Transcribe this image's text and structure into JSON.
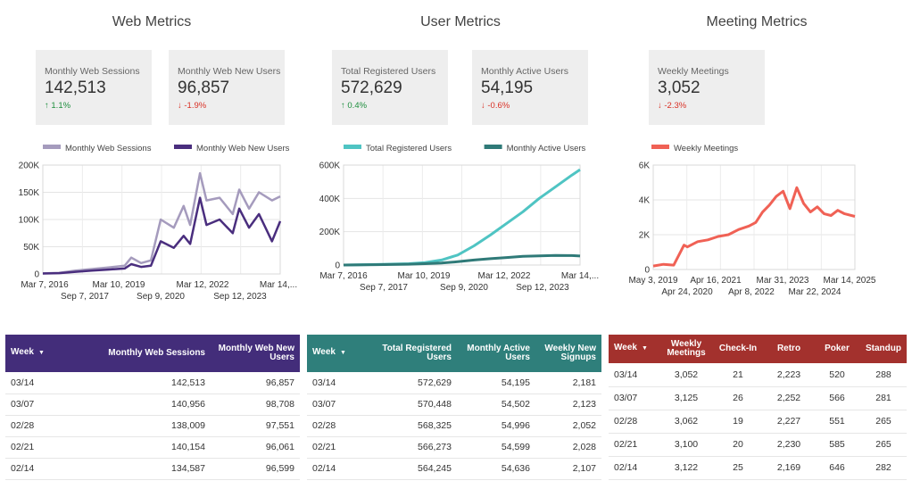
{
  "sections": {
    "web": {
      "title": "Web Metrics"
    },
    "user": {
      "title": "User Metrics"
    },
    "meeting": {
      "title": "Meeting Metrics"
    }
  },
  "kpis": {
    "web_sessions": {
      "label": "Monthly Web Sessions",
      "value": "142,513",
      "delta": "1.1%",
      "direction": "up"
    },
    "web_new_users": {
      "label": "Monthly Web New Users",
      "value": "96,857",
      "delta": "-1.9%",
      "direction": "down"
    },
    "registered": {
      "label": "Total Registered Users",
      "value": "572,629",
      "delta": "0.4%",
      "direction": "up"
    },
    "mau": {
      "label": "Monthly Active Users",
      "value": "54,195",
      "delta": "-0.6%",
      "direction": "down"
    },
    "meetings": {
      "label": "Weekly Meetings",
      "value": "3,052",
      "delta": "-2.3%",
      "direction": "down"
    }
  },
  "arrows": {
    "up": "↑",
    "down": "↓"
  },
  "colors": {
    "up": "#1e8e3e",
    "down": "#d93025",
    "web_sessions": "#a59bbd",
    "web_new_users": "#4a2e7e",
    "registered": "#4fc4c3",
    "mau": "#2f7a78",
    "meetings": "#f06155",
    "web_header": "#432d7a",
    "user_header": "#2f7f7b",
    "meeting_header": "#a3312d"
  },
  "chart_data": [
    {
      "type": "line",
      "id": "web",
      "series": [
        {
          "name": "Monthly Web Sessions",
          "x": [
            0,
            0.5,
            1.0,
            1.5,
            2.0,
            2.5,
            2.7,
            3.0,
            3.3,
            3.6,
            4.0,
            4.3,
            4.5,
            4.8,
            5.0,
            5.4,
            5.8,
            6.0,
            6.3,
            6.6,
            7.0,
            7.25
          ],
          "values": [
            1000,
            2000,
            6000,
            9000,
            12000,
            15000,
            30000,
            20000,
            25000,
            100000,
            85000,
            125000,
            90000,
            185000,
            135000,
            140000,
            110000,
            155000,
            120000,
            150000,
            135000,
            142513
          ]
        },
        {
          "name": "Monthly Web New Users",
          "x": [
            0,
            0.5,
            1.0,
            1.5,
            2.0,
            2.5,
            2.7,
            3.0,
            3.3,
            3.6,
            4.0,
            4.3,
            4.5,
            4.8,
            5.0,
            5.4,
            5.8,
            6.0,
            6.3,
            6.6,
            7.0,
            7.25
          ],
          "values": [
            800,
            1500,
            4000,
            6000,
            8000,
            10000,
            18000,
            13000,
            15000,
            60000,
            48000,
            70000,
            55000,
            140000,
            90000,
            100000,
            75000,
            120000,
            85000,
            110000,
            60000,
            96857
          ]
        }
      ],
      "xlim": [
        0,
        7.25
      ],
      "ylim": [
        0,
        200000
      ],
      "yticks": [
        "0",
        "50K",
        "100K",
        "150K",
        "200K"
      ],
      "xticks_row1": [
        "Mar 7, 2016",
        "Mar 10, 2019",
        "Mar 12, 2022",
        "Mar 14,..."
      ],
      "xticks_row2": [
        "Sep 7, 2017",
        "Sep 9, 2020",
        "Sep 12, 2023"
      ],
      "legend_position": "top"
    },
    {
      "type": "line",
      "id": "user",
      "series": [
        {
          "name": "Total Registered Users",
          "x": [
            0,
            1.0,
            2.0,
            2.5,
            3.0,
            3.5,
            4.0,
            4.5,
            5.0,
            5.5,
            6.0,
            6.5,
            7.0,
            7.25
          ],
          "values": [
            0,
            3000,
            8000,
            15000,
            30000,
            60000,
            115000,
            180000,
            250000,
            320000,
            400000,
            470000,
            540000,
            572629
          ]
        },
        {
          "name": "Monthly Active Users",
          "x": [
            0,
            1.0,
            2.0,
            2.5,
            3.0,
            3.5,
            4.0,
            4.5,
            5.0,
            5.5,
            6.0,
            6.5,
            7.0,
            7.25
          ],
          "values": [
            0,
            2000,
            5000,
            8000,
            12000,
            20000,
            30000,
            38000,
            45000,
            52000,
            55000,
            58000,
            57000,
            54195
          ]
        }
      ],
      "xlim": [
        0,
        7.25
      ],
      "ylim": [
        0,
        600000
      ],
      "yticks": [
        "0",
        "200K",
        "400K",
        "600K"
      ],
      "xticks_row1": [
        "Mar 7, 2016",
        "Mar 10, 2019",
        "Mar 12, 2022",
        "Mar 14,..."
      ],
      "xticks_row2": [
        "Sep 7, 2017",
        "Sep 9, 2020",
        "Sep 12, 2023"
      ],
      "legend_position": "top"
    },
    {
      "type": "line",
      "id": "meeting",
      "series": [
        {
          "name": "Weekly Meetings",
          "x": [
            0,
            0.3,
            0.6,
            0.9,
            1.0,
            1.3,
            1.6,
            1.9,
            2.2,
            2.5,
            2.8,
            3.0,
            3.2,
            3.4,
            3.6,
            3.8,
            4.0,
            4.2,
            4.4,
            4.6,
            4.8,
            5.0,
            5.2,
            5.4,
            5.6,
            5.9
          ],
          "values": [
            200,
            300,
            250,
            1400,
            1300,
            1600,
            1700,
            1900,
            2000,
            2300,
            2500,
            2700,
            3300,
            3700,
            4200,
            4500,
            3500,
            4700,
            3800,
            3300,
            3600,
            3200,
            3100,
            3400,
            3200,
            3052
          ]
        }
      ],
      "xlim": [
        0,
        5.9
      ],
      "ylim": [
        0,
        6000
      ],
      "yticks": [
        "0",
        "2K",
        "4K",
        "6K"
      ],
      "xticks_row1": [
        "May 3, 2019",
        "Apr 16, 2021",
        "Mar 31, 2023",
        "Mar 14, 2025"
      ],
      "xticks_row2": [
        "Apr 24, 2020",
        "Apr 8, 2022",
        "Mar 22, 2024"
      ],
      "legend_position": "top"
    }
  ],
  "tables": {
    "web": {
      "headers": [
        "Week",
        "Monthly Web Sessions",
        "Monthly Web New Users"
      ],
      "rows": [
        [
          "03/14",
          "142,513",
          "96,857"
        ],
        [
          "03/07",
          "140,956",
          "98,708"
        ],
        [
          "02/28",
          "138,009",
          "97,551"
        ],
        [
          "02/21",
          "140,154",
          "96,061"
        ],
        [
          "02/14",
          "134,587",
          "96,599"
        ]
      ]
    },
    "user": {
      "headers": [
        "Week",
        "Total Registered Users",
        "Monthly Active Users",
        "Weekly New Signups"
      ],
      "rows": [
        [
          "03/14",
          "572,629",
          "54,195",
          "2,181"
        ],
        [
          "03/07",
          "570,448",
          "54,502",
          "2,123"
        ],
        [
          "02/28",
          "568,325",
          "54,996",
          "2,052"
        ],
        [
          "02/21",
          "566,273",
          "54,599",
          "2,028"
        ],
        [
          "02/14",
          "564,245",
          "54,636",
          "2,107"
        ]
      ]
    },
    "meeting": {
      "headers": [
        "Week",
        "Weekly Meetings",
        "Check-In",
        "Retro",
        "Poker",
        "Standup"
      ],
      "rows": [
        [
          "03/14",
          "3,052",
          "21",
          "2,223",
          "520",
          "288"
        ],
        [
          "03/07",
          "3,125",
          "26",
          "2,252",
          "566",
          "281"
        ],
        [
          "02/28",
          "3,062",
          "19",
          "2,227",
          "551",
          "265"
        ],
        [
          "02/21",
          "3,100",
          "20",
          "2,230",
          "585",
          "265"
        ],
        [
          "02/14",
          "3,122",
          "25",
          "2,169",
          "646",
          "282"
        ]
      ]
    }
  },
  "sort_icon": "▼"
}
